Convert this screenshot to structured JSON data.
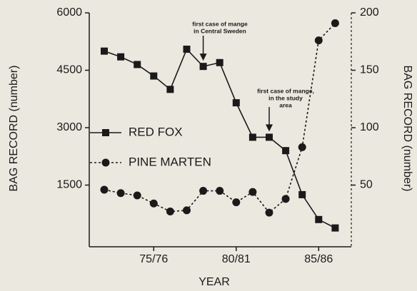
{
  "chart_data": {
    "type": "line",
    "xlabel": "YEAR",
    "ylabel": "BAG RECORD (number)",
    "y2label": "BAG RECORD (number)",
    "categories": [
      null,
      null,
      null,
      "75/76",
      null,
      null,
      null,
      null,
      "80/81",
      null,
      null,
      null,
      null,
      "85/86",
      null
    ],
    "series": [
      {
        "name": "RED FOX",
        "color": "#1a1a1a",
        "marker": "square",
        "linestyle": "solid",
        "values": [
          5000,
          4850,
          4650,
          4350,
          4000,
          5050,
          4600,
          4700,
          3650,
          2750,
          2750,
          2400,
          1250,
          600,
          380
        ]
      },
      {
        "name": "PINE MARTEN",
        "color": "#1a1a1a",
        "marker": "circle",
        "linestyle": "dashed",
        "axis": "y2",
        "values": [
          46,
          43,
          41,
          34,
          27,
          28,
          45,
          45,
          35,
          44,
          26,
          38,
          83,
          176,
          191
        ]
      }
    ],
    "ylim": [
      0,
      6000
    ],
    "yticks": [
      1500,
      3000,
      4500,
      6000
    ],
    "y2lim": [
      0,
      200
    ],
    "y2ticks": [
      50,
      100,
      150,
      200
    ],
    "annotations": [
      {
        "lines": [
          "first case of mange",
          "in Central Sweden"
        ],
        "category": 6,
        "series": 0
      },
      {
        "lines": [
          "first case of mange,",
          "in the study",
          "area"
        ],
        "category": 10,
        "series": 0
      }
    ],
    "legend": "center-left"
  }
}
